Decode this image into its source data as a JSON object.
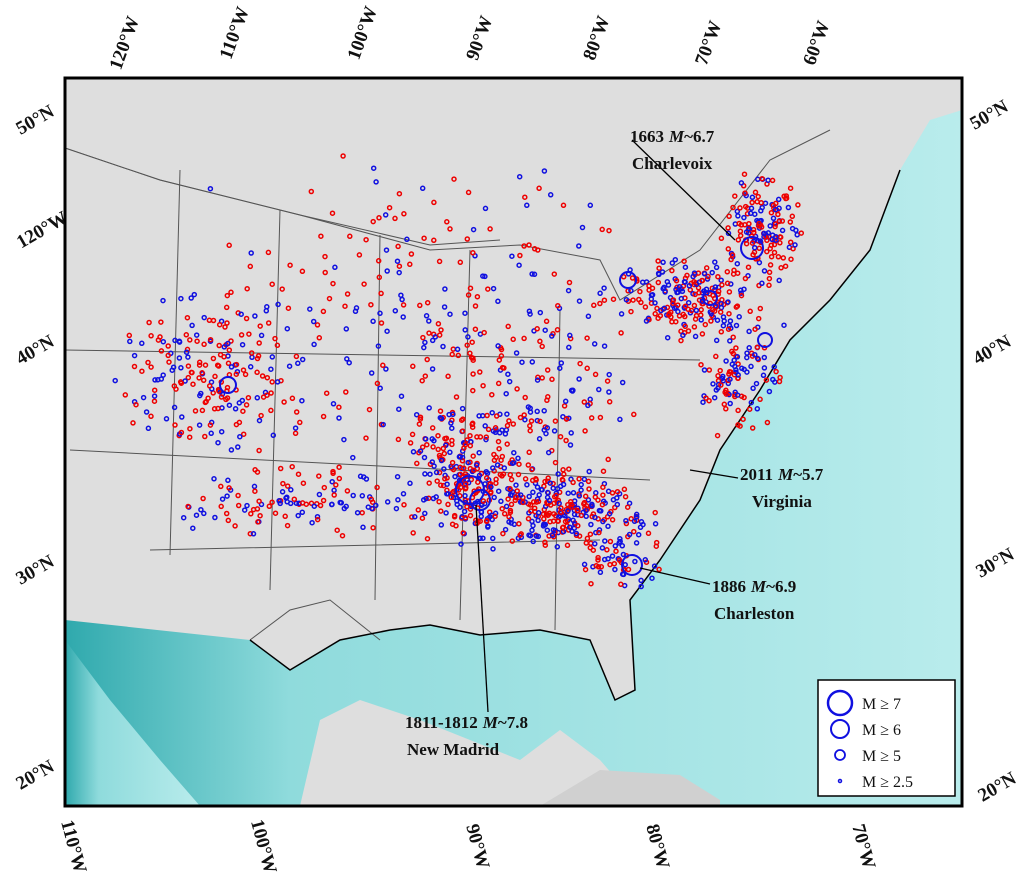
{
  "map": {
    "top_labels": [
      "120°W",
      "110°W",
      "100°W",
      "90°W",
      "80°W",
      "70°W",
      "60°W"
    ],
    "left_labels": [
      "50°N",
      "120°W",
      "40°N",
      "30°N",
      "20°N"
    ],
    "right_labels": [
      "50°N",
      "40°N",
      "30°N",
      "20°N"
    ],
    "bottom_labels": [
      "110°W",
      "100°W",
      "90°W",
      "80°W",
      "70°W"
    ],
    "annotations": [
      {
        "year": "1663",
        "symbol": "M",
        "magnitude": "~6.7",
        "place": "Charlevoix"
      },
      {
        "year": "2011",
        "symbol": "M",
        "magnitude": "~5.7",
        "place": "Virginia"
      },
      {
        "year": "1886",
        "symbol": "M",
        "magnitude": "~6.9",
        "place": "Charleston"
      },
      {
        "year": "1811-1812",
        "symbol": "M",
        "magnitude": "~7.8",
        "place": "New Madrid"
      }
    ],
    "legend": [
      "M ≥ 7",
      "M ≥ 6",
      "M ≥ 5",
      "M ≥ 2.5"
    ]
  }
}
